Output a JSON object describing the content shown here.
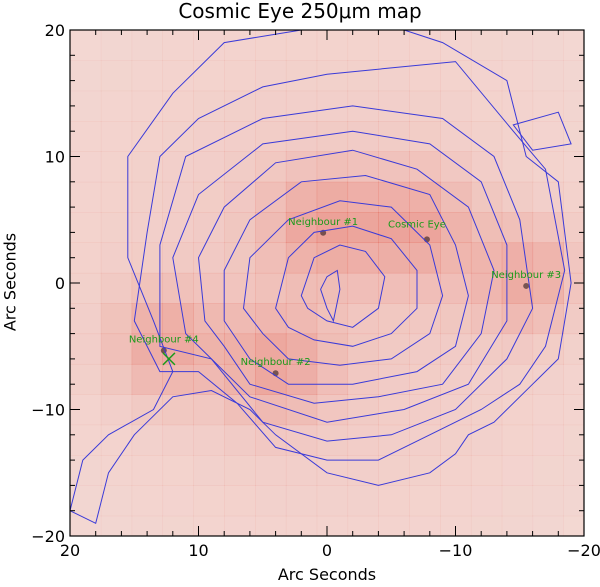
{
  "title": "Cosmic Eye 250μm map",
  "axes": {
    "xlabel": "Arc Seconds",
    "ylabel": "Arc Seconds",
    "xlim": [
      20,
      -20
    ],
    "ylim": [
      -20,
      20
    ],
    "x_ticks": [
      "20",
      "10",
      "0",
      "−10",
      "−20"
    ],
    "y_ticks": [
      "−20",
      "−10",
      "0",
      "10",
      "20"
    ]
  },
  "colors": {
    "contour": "#3a3ad8",
    "annotation": "#1a9a1a",
    "background_tint": "#f3c9c2"
  },
  "sources": [
    {
      "label": "Neighbour #1",
      "x": 0.3,
      "y": 4.6
    },
    {
      "label": "Cosmic Eye",
      "x": -7.0,
      "y": 4.4
    },
    {
      "label": "Neighbour #3",
      "x": -15.5,
      "y": 0.4
    },
    {
      "label": "Neighbour #4",
      "x": 12.7,
      "y": -4.7
    },
    {
      "label": "Neighbour #2",
      "x": 4.0,
      "y": -6.5
    }
  ],
  "marker": {
    "x": 12.3,
    "y": -6.0,
    "symbol": "x-icon"
  },
  "contours": [
    {
      "level": 1,
      "points": [
        [
          20,
          -18
        ],
        [
          19,
          -14
        ],
        [
          17,
          -12
        ],
        [
          13.5,
          -10
        ],
        [
          12,
          -7
        ],
        [
          13.5,
          -3
        ],
        [
          15.5,
          2
        ],
        [
          15.5,
          10
        ],
        [
          12,
          15
        ],
        [
          8,
          19
        ],
        [
          2,
          20
        ],
        [
          -6,
          20
        ],
        [
          -9,
          19
        ],
        [
          -14,
          16
        ],
        [
          -15.5,
          10
        ],
        [
          -18,
          8
        ],
        [
          -19,
          0
        ],
        [
          -18,
          -6
        ],
        [
          -16,
          -8
        ],
        [
          -13,
          -11
        ],
        [
          -11,
          -12
        ],
        [
          -10,
          -13.5
        ],
        [
          -8,
          -15
        ],
        [
          -4,
          -16
        ],
        [
          0,
          -15
        ],
        [
          4,
          -12
        ],
        [
          6,
          -10
        ],
        [
          9,
          -8.5
        ],
        [
          12,
          -9
        ],
        [
          15,
          -12
        ],
        [
          17,
          -15
        ],
        [
          18,
          -19
        ]
      ]
    },
    {
      "level": 2,
      "points": [
        [
          13,
          -7
        ],
        [
          15,
          -3
        ],
        [
          14,
          4
        ],
        [
          13,
          10
        ],
        [
          10,
          13
        ],
        [
          5,
          15.5
        ],
        [
          0,
          16.5
        ],
        [
          -5,
          17
        ],
        [
          -10,
          17.5
        ],
        [
          -14.5,
          12
        ],
        [
          -17,
          9
        ],
        [
          -18.5,
          1
        ],
        [
          -17,
          -5
        ],
        [
          -15,
          -8
        ],
        [
          -12,
          -10
        ],
        [
          -8,
          -12
        ],
        [
          -4,
          -14
        ],
        [
          0,
          -14
        ],
        [
          4,
          -13
        ],
        [
          7,
          -9.5
        ],
        [
          10,
          -7
        ]
      ]
    },
    {
      "level": 3,
      "points": [
        [
          13,
          -5
        ],
        [
          13,
          3
        ],
        [
          11,
          10
        ],
        [
          5,
          13
        ],
        [
          -2,
          14
        ],
        [
          -9,
          13
        ],
        [
          -13,
          10
        ],
        [
          -15,
          5
        ],
        [
          -16,
          -2
        ],
        [
          -14,
          -6
        ],
        [
          -10,
          -10
        ],
        [
          -5,
          -12
        ],
        [
          0,
          -12.5
        ],
        [
          5,
          -11
        ],
        [
          9,
          -6
        ]
      ]
    },
    {
      "level": 4,
      "points": [
        [
          11,
          -4
        ],
        [
          12,
          2
        ],
        [
          10,
          7
        ],
        [
          5,
          11
        ],
        [
          -2,
          12
        ],
        [
          -8,
          11
        ],
        [
          -12,
          8
        ],
        [
          -14,
          3
        ],
        [
          -14,
          -3
        ],
        [
          -11,
          -8
        ],
        [
          -6,
          -10
        ],
        [
          0,
          -11
        ],
        [
          6,
          -9
        ],
        [
          9,
          -6
        ]
      ]
    },
    {
      "level": 5,
      "points": [
        [
          9.5,
          -3
        ],
        [
          10,
          2
        ],
        [
          8,
          6
        ],
        [
          4,
          9.5
        ],
        [
          -2,
          10.5
        ],
        [
          -7,
          9
        ],
        [
          -11,
          6
        ],
        [
          -13,
          1
        ],
        [
          -12,
          -4
        ],
        [
          -9,
          -8
        ],
        [
          -4,
          -9
        ],
        [
          1,
          -9.5
        ],
        [
          6,
          -8
        ],
        [
          8,
          -5
        ]
      ]
    },
    {
      "level": 6,
      "points": [
        [
          8,
          -3
        ],
        [
          8,
          1
        ],
        [
          6,
          5
        ],
        [
          2,
          8
        ],
        [
          -3,
          8.5
        ],
        [
          -8,
          7
        ],
        [
          -10,
          3
        ],
        [
          -11,
          -1
        ],
        [
          -10,
          -5
        ],
        [
          -7,
          -7
        ],
        [
          -2,
          -8
        ],
        [
          3,
          -8
        ],
        [
          6,
          -6
        ]
      ]
    },
    {
      "level": 7,
      "points": [
        [
          6.5,
          -2
        ],
        [
          6,
          2
        ],
        [
          3,
          5
        ],
        [
          -1,
          6.5
        ],
        [
          -5,
          6
        ],
        [
          -8,
          3
        ],
        [
          -9,
          -1
        ],
        [
          -8,
          -4
        ],
        [
          -5,
          -6
        ],
        [
          -1,
          -6.5
        ],
        [
          3,
          -6
        ],
        [
          5,
          -4
        ]
      ]
    },
    {
      "level": 8,
      "points": [
        [
          4,
          -2
        ],
        [
          3,
          2
        ],
        [
          1,
          4
        ],
        [
          -2,
          4.5
        ],
        [
          -5,
          3.5
        ],
        [
          -7,
          1
        ],
        [
          -7,
          -2
        ],
        [
          -5,
          -4
        ],
        [
          -2,
          -5
        ],
        [
          1,
          -4.5
        ],
        [
          3,
          -3.5
        ]
      ]
    },
    {
      "level": 9,
      "points": [
        [
          2,
          -1
        ],
        [
          1,
          2
        ],
        [
          -1,
          3
        ],
        [
          -3,
          2.5
        ],
        [
          -4.5,
          0.5
        ],
        [
          -4,
          -2
        ],
        [
          -2,
          -3.5
        ],
        [
          0,
          -3
        ],
        [
          1.5,
          -2
        ]
      ]
    },
    {
      "level": 10,
      "points": [
        [
          0.5,
          -0.5
        ],
        [
          0,
          0.5
        ],
        [
          -0.8,
          1
        ],
        [
          -1,
          -0.5
        ],
        [
          -0.5,
          -3
        ],
        [
          0,
          -2
        ]
      ]
    },
    {
      "level": 11,
      "points": [
        [
          -14.5,
          12.5
        ],
        [
          -18,
          13.5
        ],
        [
          -19,
          11
        ],
        [
          -16,
          10.5
        ]
      ]
    }
  ]
}
